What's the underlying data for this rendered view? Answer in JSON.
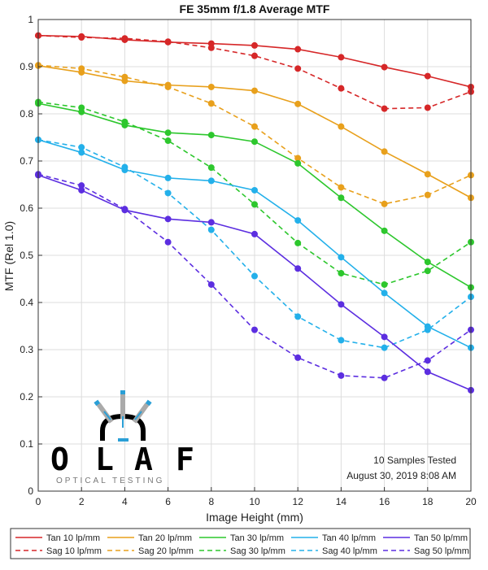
{
  "chart_data": {
    "type": "line",
    "title": "FE 35mm f/1.8 Average MTF",
    "xlabel": "Image Height (mm)",
    "ylabel": "MTF (Rel 1.0)",
    "xlim": [
      0,
      20
    ],
    "ylim": [
      0,
      1
    ],
    "x_ticks": [
      "0",
      "2",
      "4",
      "6",
      "8",
      "10",
      "12",
      "14",
      "16",
      "18",
      "20"
    ],
    "y_ticks": [
      "0",
      "0.1",
      "0.2",
      "0.3",
      "0.4",
      "0.5",
      "0.6",
      "0.7",
      "0.8",
      "0.9",
      "1"
    ],
    "grid": true,
    "legend_position": "bottom",
    "x": [
      0,
      2,
      4,
      6,
      8,
      10,
      12,
      14,
      16,
      18,
      20
    ],
    "series": [
      {
        "name": "Tan 10 lp/mm",
        "color": "#d62728",
        "style": "solid",
        "values": [
          0.966,
          0.964,
          0.957,
          0.952,
          0.949,
          0.945,
          0.937,
          0.92,
          0.899,
          0.88,
          0.857
        ]
      },
      {
        "name": "Sag 10 lp/mm",
        "color": "#d62728",
        "style": "dashed",
        "values": [
          0.966,
          0.962,
          0.96,
          0.953,
          0.94,
          0.923,
          0.896,
          0.854,
          0.811,
          0.813,
          0.847
        ]
      },
      {
        "name": "Tan 20 lp/mm",
        "color": "#e8a01c",
        "style": "solid",
        "values": [
          0.902,
          0.888,
          0.87,
          0.861,
          0.857,
          0.849,
          0.821,
          0.773,
          0.72,
          0.672,
          0.622
        ]
      },
      {
        "name": "Sag 20 lp/mm",
        "color": "#e8a01c",
        "style": "dashed",
        "values": [
          0.903,
          0.896,
          0.878,
          0.857,
          0.822,
          0.773,
          0.706,
          0.644,
          0.609,
          0.628,
          0.67
        ]
      },
      {
        "name": "Tan 30 lp/mm",
        "color": "#2dc72d",
        "style": "solid",
        "values": [
          0.822,
          0.804,
          0.776,
          0.76,
          0.755,
          0.741,
          0.695,
          0.622,
          0.552,
          0.486,
          0.432
        ]
      },
      {
        "name": "Sag 30 lp/mm",
        "color": "#2dc72d",
        "style": "dashed",
        "values": [
          0.825,
          0.813,
          0.783,
          0.743,
          0.686,
          0.608,
          0.526,
          0.462,
          0.438,
          0.467,
          0.528
        ]
      },
      {
        "name": "Tan 40 lp/mm",
        "color": "#23b0ea",
        "style": "solid",
        "values": [
          0.745,
          0.718,
          0.681,
          0.664,
          0.658,
          0.638,
          0.574,
          0.496,
          0.42,
          0.349,
          0.304
        ]
      },
      {
        "name": "Sag 40 lp/mm",
        "color": "#23b0ea",
        "style": "dashed",
        "values": [
          0.745,
          0.729,
          0.687,
          0.632,
          0.554,
          0.456,
          0.37,
          0.32,
          0.304,
          0.342,
          0.412
        ]
      },
      {
        "name": "Tan 50 lp/mm",
        "color": "#5c2ee0",
        "style": "solid",
        "values": [
          0.67,
          0.638,
          0.596,
          0.577,
          0.57,
          0.545,
          0.472,
          0.396,
          0.327,
          0.253,
          0.214
        ]
      },
      {
        "name": "Sag 50 lp/mm",
        "color": "#5c2ee0",
        "style": "dashed",
        "values": [
          0.672,
          0.648,
          0.598,
          0.528,
          0.438,
          0.342,
          0.283,
          0.245,
          0.24,
          0.277,
          0.342
        ]
      }
    ],
    "annotations": [
      "10 Samples Tested",
      "August 30, 2019  8:08 AM"
    ]
  },
  "logo": {
    "letters": [
      "O",
      "L",
      "A",
      "F"
    ],
    "subtitle": "OPTICAL TESTING",
    "colors": {
      "primary": "#000000",
      "accent": "#2a9fd6",
      "gray": "#aaaaaa"
    }
  }
}
